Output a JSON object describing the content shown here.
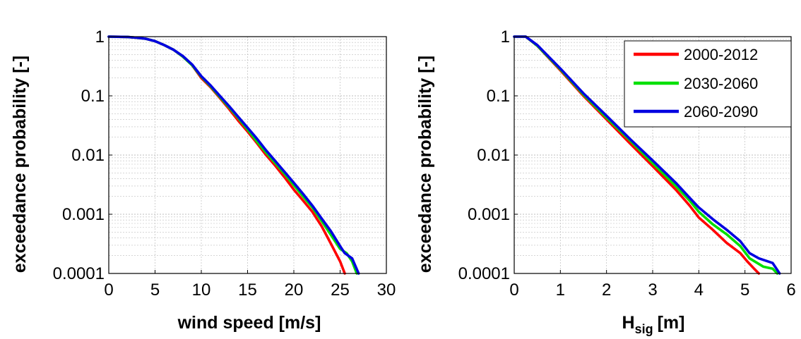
{
  "chart_data": [
    {
      "type": "line",
      "xlabel": "wind speed [m/s]",
      "ylabel": "exceedance probability [-]",
      "xlim": [
        0,
        30
      ],
      "ylim": [
        0.0001,
        1
      ],
      "yscale": "log",
      "xticks": [
        "0",
        "5",
        "10",
        "15",
        "20",
        "25",
        "30"
      ],
      "yticks": [
        "1",
        "0.1",
        "0.01",
        "0.001",
        "0.0001"
      ],
      "grid": true,
      "series": [
        {
          "name": "2000-2012",
          "color": "#ff0000",
          "x": [
            0,
            2,
            3,
            4,
            5,
            6,
            7,
            8,
            9,
            10,
            11,
            12,
            13,
            14,
            15,
            16,
            17,
            18,
            19,
            20,
            21,
            22,
            23,
            24,
            25,
            25.5
          ],
          "y": [
            1,
            0.99,
            0.96,
            0.92,
            0.84,
            0.72,
            0.6,
            0.46,
            0.33,
            0.2,
            0.14,
            0.092,
            0.06,
            0.038,
            0.025,
            0.016,
            0.01,
            0.0066,
            0.0042,
            0.0026,
            0.0017,
            0.0011,
            0.00063,
            0.00032,
            0.00016,
            0.0001
          ]
        },
        {
          "name": "2030-2060",
          "color": "#00e000",
          "x": [
            0,
            2,
            3,
            4,
            5,
            6,
            7,
            8,
            9,
            10,
            11,
            12,
            13,
            14,
            15,
            16,
            17,
            18,
            19,
            20,
            21,
            22,
            23,
            24,
            25,
            25.7,
            26.3,
            26.8
          ],
          "y": [
            1,
            0.99,
            0.96,
            0.92,
            0.84,
            0.72,
            0.6,
            0.46,
            0.33,
            0.21,
            0.145,
            0.096,
            0.064,
            0.042,
            0.027,
            0.017,
            0.011,
            0.0073,
            0.0048,
            0.0031,
            0.002,
            0.0013,
            0.00077,
            0.00045,
            0.00026,
            0.00022,
            0.00016,
            0.0001
          ]
        },
        {
          "name": "2060-2090",
          "color": "#0000e0",
          "x": [
            0,
            2,
            3,
            4,
            5,
            6,
            7,
            8,
            9,
            10,
            11,
            12,
            13,
            14,
            15,
            16,
            17,
            18,
            19,
            20,
            21,
            22,
            23,
            24,
            25,
            25.5,
            26.3,
            27
          ],
          "y": [
            1,
            0.99,
            0.96,
            0.92,
            0.84,
            0.72,
            0.6,
            0.47,
            0.34,
            0.215,
            0.15,
            0.1,
            0.067,
            0.044,
            0.029,
            0.019,
            0.012,
            0.0079,
            0.0052,
            0.0034,
            0.0022,
            0.0014,
            0.00085,
            0.00052,
            0.00029,
            0.00022,
            0.00018,
            0.0001
          ]
        }
      ]
    },
    {
      "type": "line",
      "xlabel": "H",
      "xlabel_subscript": "sig",
      "xlabel_unit": "[m]",
      "ylabel": "exceedance probability [-]",
      "xlim": [
        0,
        6
      ],
      "ylim": [
        0.0001,
        1
      ],
      "yscale": "log",
      "xticks": [
        "0",
        "1",
        "2",
        "3",
        "4",
        "5",
        "6"
      ],
      "yticks": [
        "1",
        "0.1",
        "0.01",
        "0.001",
        "0.0001"
      ],
      "grid": true,
      "legend": "top-right",
      "series": [
        {
          "name": "2000-2012",
          "color": "#ff0000",
          "x": [
            0,
            0.25,
            0.5,
            1,
            1.5,
            2,
            2.5,
            3,
            3.5,
            3.8,
            4,
            4.3,
            4.6,
            4.9,
            5.05,
            5.2,
            5.3
          ],
          "y": [
            1,
            1,
            0.7,
            0.27,
            0.1,
            0.04,
            0.016,
            0.0065,
            0.0026,
            0.0014,
            0.00088,
            0.00055,
            0.00033,
            0.00022,
            0.00016,
            0.00012,
            0.0001
          ]
        },
        {
          "name": "2030-2060",
          "color": "#00e000",
          "x": [
            0,
            0.25,
            0.5,
            1,
            1.5,
            2,
            2.5,
            3,
            3.5,
            3.8,
            4,
            4.3,
            4.6,
            4.9,
            5.1,
            5.4,
            5.6,
            5.7
          ],
          "y": [
            1,
            1,
            0.7,
            0.28,
            0.105,
            0.043,
            0.018,
            0.0073,
            0.003,
            0.0017,
            0.0011,
            0.00068,
            0.00046,
            0.00029,
            0.00018,
            0.00013,
            0.00012,
            0.0001
          ]
        },
        {
          "name": "2060-2090",
          "color": "#0000e0",
          "x": [
            0,
            0.25,
            0.5,
            1,
            1.5,
            2,
            2.5,
            3,
            3.5,
            3.8,
            4,
            4.3,
            4.6,
            4.9,
            5.1,
            5.3,
            5.6,
            5.75
          ],
          "y": [
            1,
            1,
            0.72,
            0.29,
            0.11,
            0.046,
            0.019,
            0.0081,
            0.0034,
            0.0019,
            0.0013,
            0.00083,
            0.00055,
            0.00035,
            0.00022,
            0.00018,
            0.00015,
            0.0001
          ]
        }
      ]
    }
  ]
}
